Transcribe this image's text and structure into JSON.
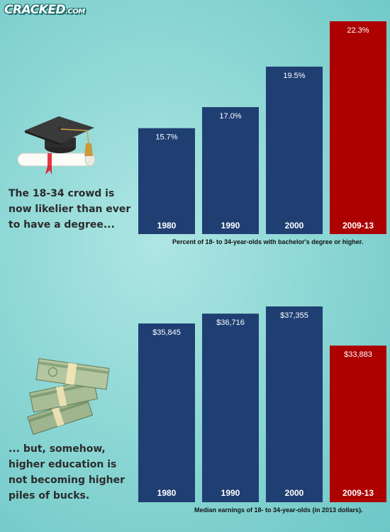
{
  "brand": {
    "logo_text": "CRACKED",
    "logo_suffix": ".COM"
  },
  "colors": {
    "regular_bar": "#1f3f73",
    "highlight_bar": "#ad0000",
    "background": "#8fd8d6"
  },
  "panel_top": {
    "intro_text": "The 18-34 crowd is now likelier than ever to have a degree...",
    "caption": "Percent of 18- to 34-year-olds with bachelor's degree or higher.",
    "illustration": "graduation-cap-and-diploma"
  },
  "panel_bottom": {
    "intro_text": "... but, somehow, higher education is not becoming higher piles of bucks.",
    "caption": "Median earnings of 18- to 34-year-olds (in 2013 dollars).",
    "illustration": "money-stacks"
  },
  "chart_data": [
    {
      "type": "bar",
      "title": "",
      "caption": "Percent of 18- to 34-year-olds with bachelor's degree or higher.",
      "categories": [
        "1980",
        "1990",
        "2000",
        "2009-13"
      ],
      "values": [
        15.7,
        17.0,
        19.5,
        22.3
      ],
      "value_labels": [
        "15.7%",
        "17.0%",
        "19.5%",
        "22.3%"
      ],
      "highlight_index": 3,
      "xlabel": "",
      "ylabel": "",
      "grid": false,
      "legend": "none"
    },
    {
      "type": "bar",
      "title": "",
      "caption": "Median earnings of 18- to 34-year-olds (in 2013 dollars).",
      "categories": [
        "1980",
        "1990",
        "2000",
        "2009-13"
      ],
      "values": [
        35845,
        36716,
        37355,
        33883
      ],
      "value_labels": [
        "$35,845",
        "$36,716",
        "$37,355",
        "$33,883"
      ],
      "highlight_index": 3,
      "xlabel": "",
      "ylabel": "",
      "grid": false,
      "legend": "none"
    }
  ]
}
